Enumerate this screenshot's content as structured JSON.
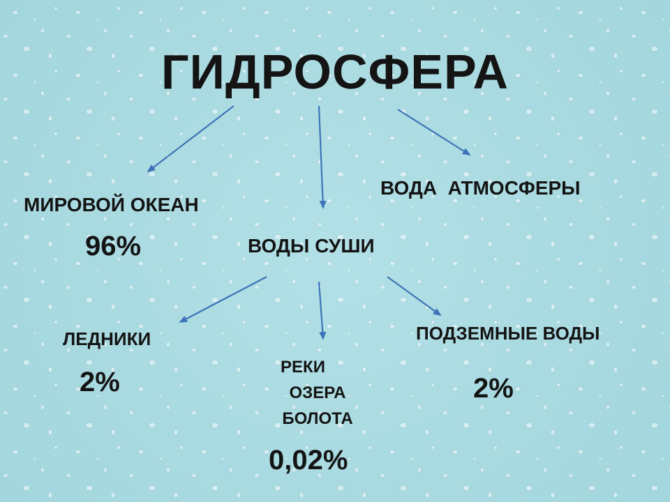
{
  "title": "ГИДРОСФЕРА",
  "nodes": {
    "world_ocean": {
      "label": "МИРОВОЙ ОКЕАН",
      "percent": "96%"
    },
    "atmosphere": {
      "label": "ВОДА  АТМОСФЕРЫ"
    },
    "land_waters": {
      "label": "ВОДЫ СУШИ"
    },
    "glaciers": {
      "label": "ЛЕДНИКИ",
      "percent": "2%"
    },
    "surface_waters": {
      "lines": [
        "РЕКИ",
        "ОЗЕРА",
        "БОЛОТА"
      ],
      "percent": "0,02%"
    },
    "groundwater": {
      "label": "ПОДЗЕМНЫЕ ВОДЫ",
      "percent": "2%"
    }
  },
  "colors": {
    "arrow": "#3d73b8",
    "text": "#141414",
    "background": "#a9dbe1"
  }
}
